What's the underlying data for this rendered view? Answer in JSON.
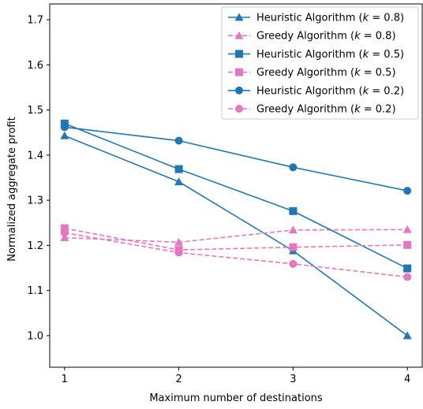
{
  "chart_data": {
    "type": "line",
    "title": "",
    "xlabel": "Maximum number of destinations",
    "ylabel": "Normalized aggregate profit",
    "x": [
      1,
      2,
      3,
      4
    ],
    "x_ticks": [
      "1",
      "2",
      "3",
      "4"
    ],
    "y_ticks": [
      "1.0",
      "1.1",
      "1.2",
      "1.3",
      "1.4",
      "1.5",
      "1.6",
      "1.7"
    ],
    "xlim": [
      0.87,
      4.13
    ],
    "ylim": [
      0.93,
      1.735
    ],
    "grid": false,
    "legend_position": "top-right",
    "series": [
      {
        "name": "Heuristic Algorithm (k = 0.8)",
        "name_text": "Heuristic Algorithm (",
        "k_value": "0.8",
        "color": "#1f77b4",
        "linestyle": "solid",
        "marker": "triangle",
        "values": [
          1.443,
          1.341,
          1.188,
          1.0
        ]
      },
      {
        "name": "Greedy Algorithm (k = 0.8)",
        "name_text": "Greedy Algorithm (",
        "k_value": "0.8",
        "color": "#e377c2",
        "linestyle": "dashed",
        "marker": "triangle",
        "values": [
          1.217,
          1.207,
          1.234,
          1.235
        ]
      },
      {
        "name": "Heuristic Algorithm (k = 0.5)",
        "name_text": "Heuristic Algorithm (",
        "k_value": "0.5",
        "color": "#1f77b4",
        "linestyle": "solid",
        "marker": "square",
        "values": [
          1.47,
          1.369,
          1.276,
          1.149
        ]
      },
      {
        "name": "Greedy Algorithm (k = 0.5)",
        "name_text": "Greedy Algorithm (",
        "k_value": "0.5",
        "color": "#e377c2",
        "linestyle": "dashed",
        "marker": "square",
        "values": [
          1.238,
          1.19,
          1.196,
          1.201
        ]
      },
      {
        "name": "Heuristic Algorithm (k = 0.2)",
        "name_text": "Heuristic Algorithm (",
        "k_value": "0.2",
        "color": "#1f77b4",
        "linestyle": "solid",
        "marker": "circle",
        "values": [
          1.462,
          1.432,
          1.373,
          1.321
        ]
      },
      {
        "name": "Greedy Algorithm (k = 0.2)",
        "name_text": "Greedy Algorithm (",
        "k_value": "0.2",
        "color": "#e377c2",
        "linestyle": "dashed",
        "marker": "circle",
        "values": [
          1.228,
          1.184,
          1.159,
          1.13
        ]
      }
    ]
  }
}
